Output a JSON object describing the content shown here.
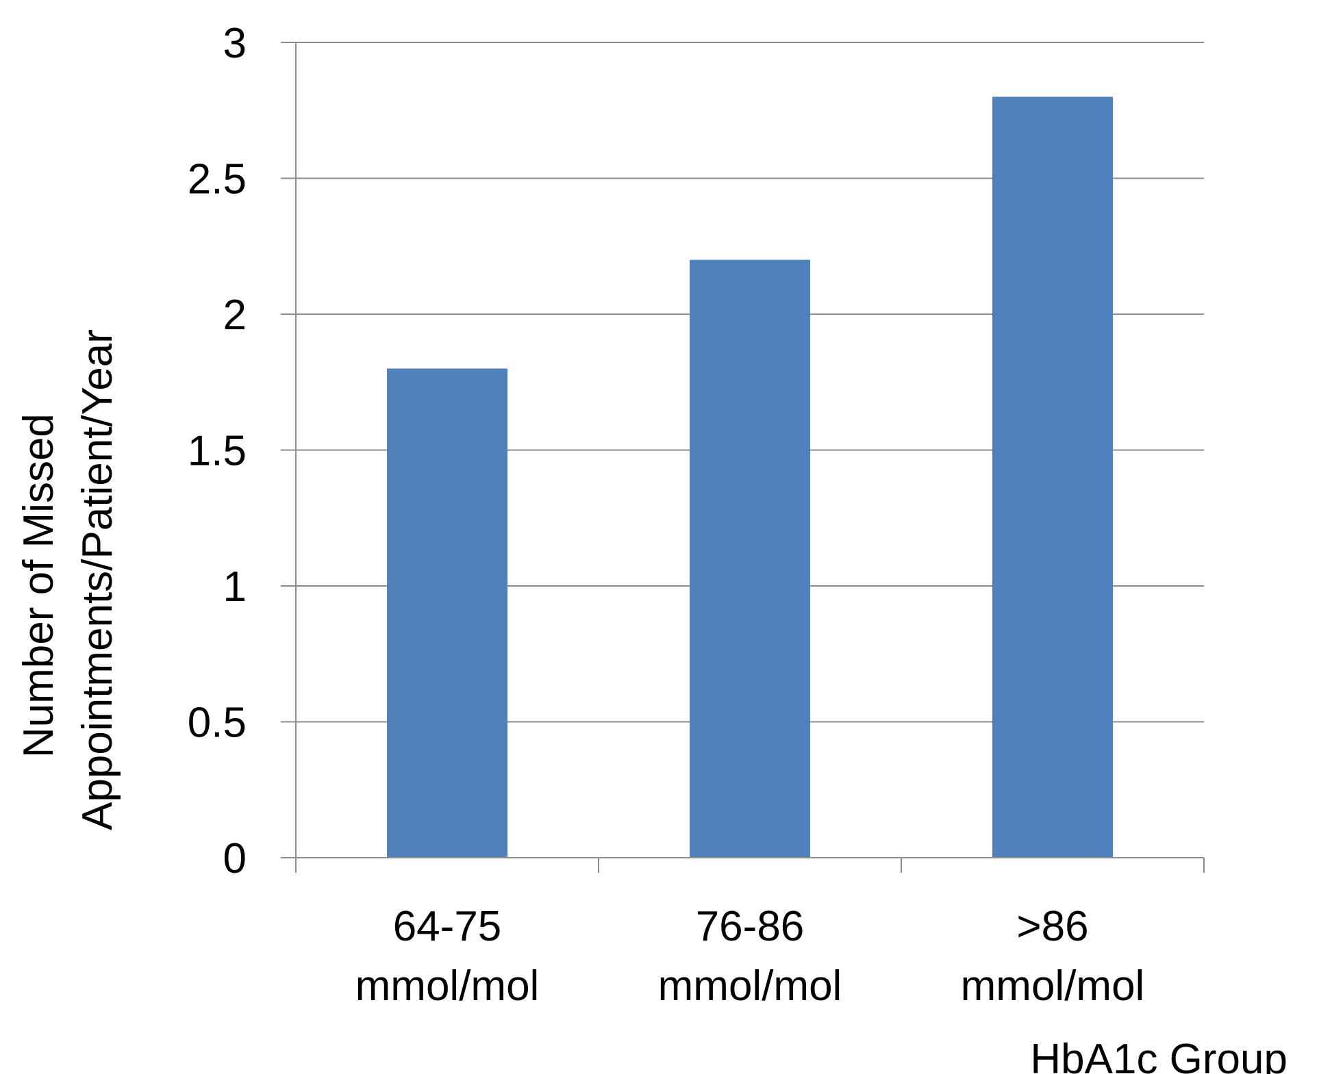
{
  "chart_data": {
    "type": "bar",
    "title": "",
    "categories": [
      "64-75 mmol/mol",
      "76-86 mmol/mol",
      ">86 mmol/mol"
    ],
    "category_lines": [
      [
        "64-75",
        "mmol/mol"
      ],
      [
        "76-86",
        "mmol/mol"
      ],
      [
        ">86",
        "mmol/mol"
      ]
    ],
    "values": [
      1.8,
      2.2,
      2.8
    ],
    "xlabel": "HbA1c Group",
    "ylabel_lines": [
      "Number of Missed",
      "Appointments/Patient/Year"
    ],
    "ylabel": "Number of Missed Appointments/Patient/Year",
    "ylim": [
      0,
      3
    ],
    "yticks": [
      0,
      0.5,
      1,
      1.5,
      2,
      2.5,
      3
    ],
    "ytick_labels": [
      "0",
      "0.5",
      "1",
      "1.5",
      "2",
      "2.5",
      "3"
    ],
    "grid": true,
    "legend": "none",
    "bar_color": "#4f81bd",
    "grid_color": "#8c8c8c",
    "axis_color": "#8c8c8c"
  }
}
